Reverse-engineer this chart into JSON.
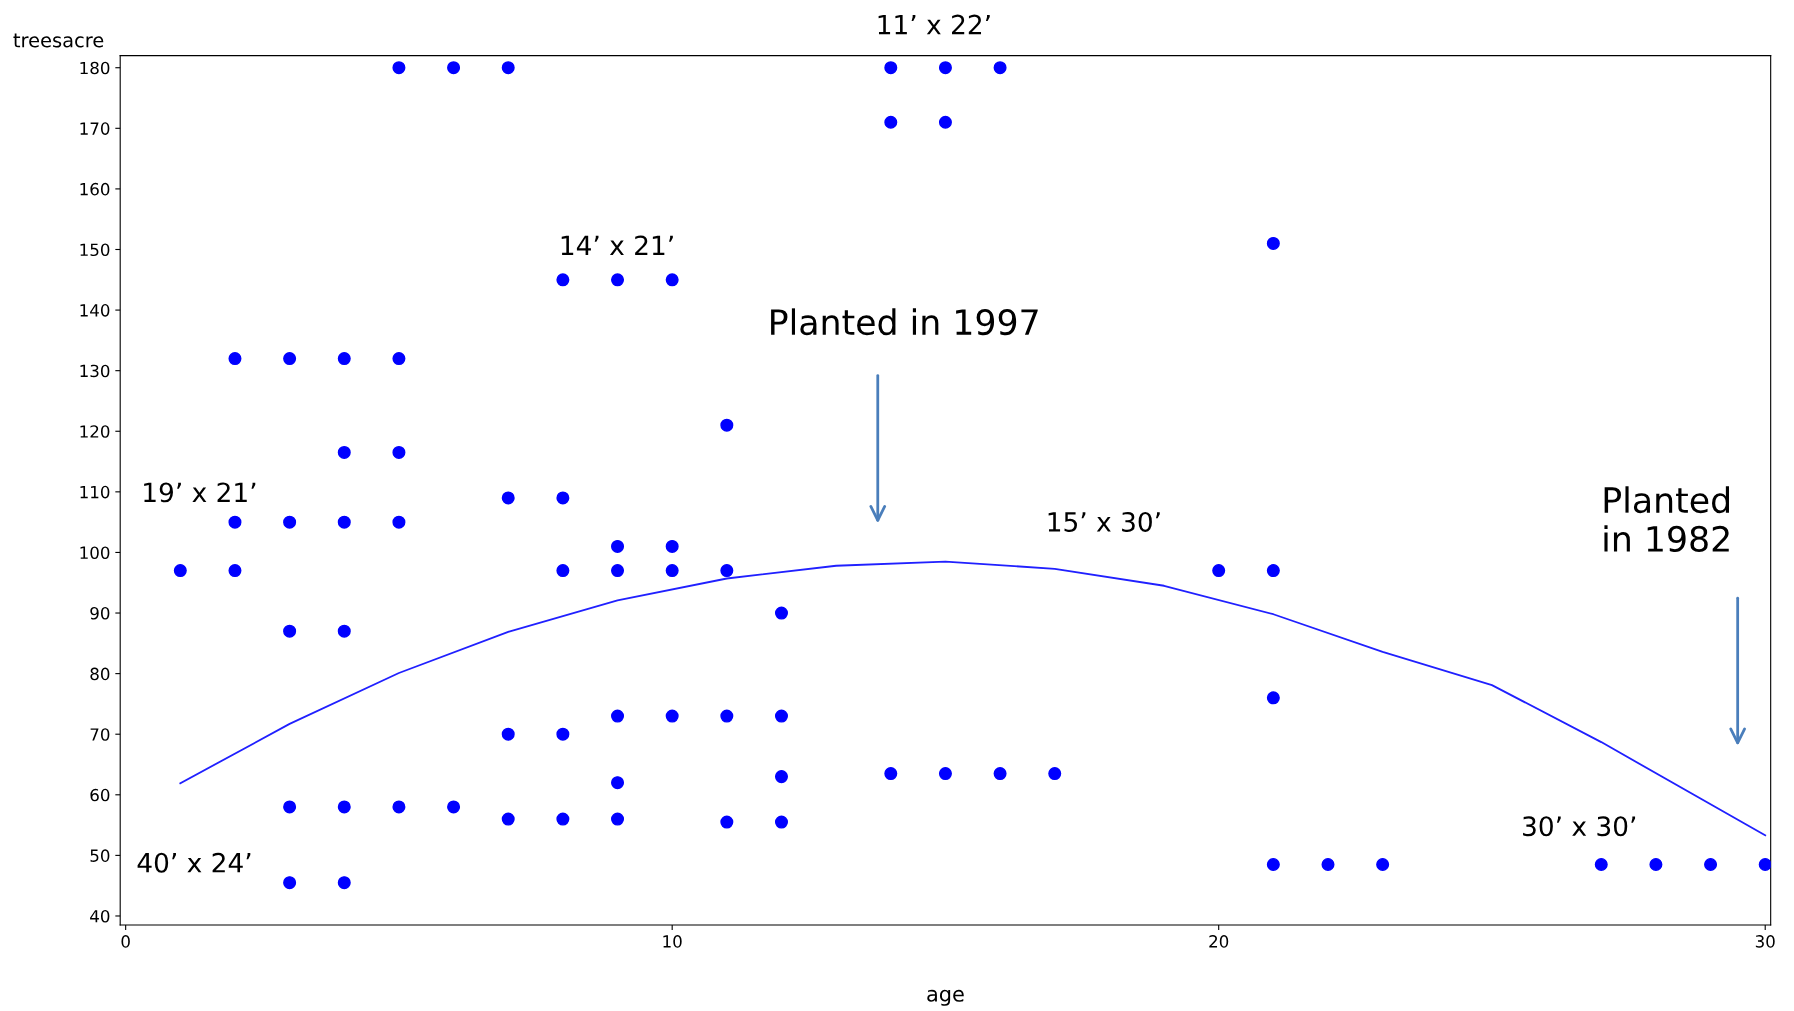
{
  "chart_data": {
    "type": "scatter",
    "xlabel": "age",
    "ylabel": "treesacre",
    "xlim": [
      -0.1,
      30.1
    ],
    "ylim": [
      38.5,
      182
    ],
    "xticks": [
      0,
      10,
      20,
      30
    ],
    "yticks": [
      40,
      50,
      60,
      70,
      80,
      90,
      100,
      110,
      120,
      130,
      140,
      150,
      160,
      170,
      180
    ],
    "grid": false,
    "marker": "circle",
    "legend": false,
    "series": [
      {
        "color": "#0000ff",
        "x": [
          1,
          2,
          2,
          2,
          3,
          3,
          3,
          3,
          3,
          4,
          4,
          4,
          4,
          4,
          4,
          5,
          5,
          5,
          5,
          5,
          6,
          6,
          7,
          7,
          7,
          7,
          8,
          8,
          8,
          8,
          8,
          9,
          9,
          9,
          9,
          9,
          9,
          10,
          10,
          10,
          10,
          11,
          11,
          11,
          11,
          12,
          12,
          12,
          12,
          14,
          14,
          14,
          15,
          15,
          15,
          16,
          16,
          17,
          20,
          21,
          21,
          21,
          21,
          22,
          23,
          27,
          28,
          29,
          30
        ],
        "values": [
          97,
          132,
          105,
          97,
          132,
          105,
          87,
          58,
          45.5,
          132,
          116.5,
          105,
          87,
          58,
          45.5,
          180,
          132,
          116.5,
          105,
          58,
          180,
          58,
          180,
          109,
          70,
          56,
          145,
          109,
          97,
          70,
          56,
          145,
          101,
          97,
          73,
          62,
          56,
          145,
          101,
          97,
          73,
          121,
          97,
          73,
          55.5,
          90,
          73,
          63,
          55.5,
          180,
          171,
          63.5,
          180,
          171,
          63.5,
          180,
          63.5,
          63.5,
          97,
          151,
          97,
          76,
          48.5,
          48.5,
          48.5,
          48.5,
          48.5,
          48.5,
          48.5
        ]
      },
      {
        "type": "line",
        "color": "#2020ff",
        "marker": "none",
        "x": [
          1,
          3,
          5,
          7,
          9,
          11,
          13,
          15,
          17,
          19,
          21,
          23,
          25,
          27,
          30
        ],
        "values": [
          61.9,
          71.7,
          80.1,
          86.9,
          92.1,
          95.7,
          97.8,
          98.5,
          97.3,
          94.5,
          89.8,
          83.6,
          78.1,
          68.7,
          53.3
        ]
      }
    ],
    "annotations": [
      "11’ x 22’",
      "14’ x 21’",
      "19’ x 21’",
      "40’ x 24’",
      "15’ x 30’",
      "30’ x 30’",
      "Planted in 1997",
      "Planted\nin 1982"
    ]
  }
}
